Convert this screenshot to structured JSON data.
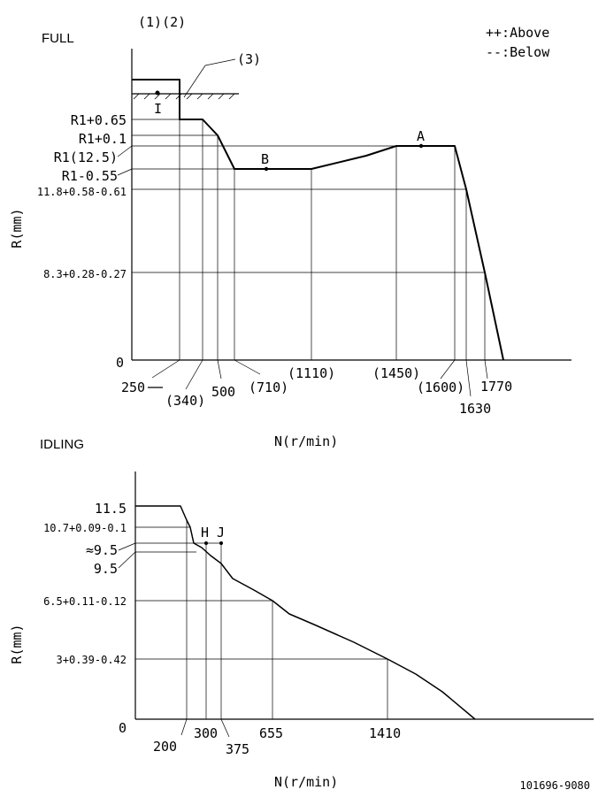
{
  "full": {
    "title": "FULL",
    "markers_top": "(1)(2)",
    "marker_3": "(3)",
    "legend_above": "++:Above",
    "legend_below": "--:Below",
    "ylabel": "R(mm)",
    "xlabel": "N(r/min)",
    "y_labels": {
      "r1_065": "R1+0.65",
      "r1_01": "R1+0.1",
      "r1_125": "R1(12.5)",
      "r1_055": "R1-0.55",
      "v118": "11.8+0.58-0.61",
      "v83": "8.3+0.28-0.27",
      "zero": "0"
    },
    "x_labels": {
      "x250": "250",
      "x340": "(340)",
      "x500": "500",
      "x710": "(710)",
      "x1110": "(1110)",
      "x1450": "(1450)",
      "x1600": "(1600)",
      "x1630": "1630",
      "x1770": "1770"
    },
    "points": {
      "a": "A",
      "b": "B",
      "i": "I"
    }
  },
  "idling": {
    "title": "IDLING",
    "ylabel": "R(mm)",
    "xlabel": "N(r/min)",
    "y_labels": {
      "v115": "11.5",
      "v107": "10.7+0.09-0.1",
      "approx95": "≈9.5",
      "v95": "9.5",
      "v65": "6.5+0.11-0.12",
      "v3": "3+0.39-0.42",
      "zero": "0"
    },
    "x_labels": {
      "x200": "200",
      "x300": "300",
      "x375": "375",
      "x655": "655",
      "x1410": "1410"
    },
    "points": {
      "h": "H",
      "j": "J"
    }
  },
  "footer_code": "101696-9080"
}
